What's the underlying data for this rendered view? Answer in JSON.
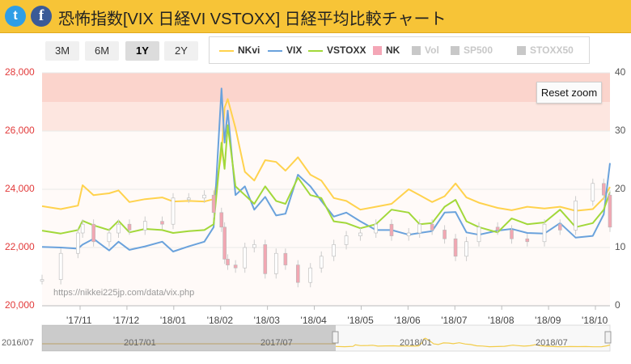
{
  "header": {
    "title": "恐怖指数[VIX 日経VI VSTOXX] 日経平均比較チャート",
    "twitter_glyph": "t",
    "facebook_glyph": "f"
  },
  "range_buttons": [
    {
      "label": "3M",
      "active": false
    },
    {
      "label": "6M",
      "active": false
    },
    {
      "label": "1Y",
      "active": true
    },
    {
      "label": "2Y",
      "active": false
    }
  ],
  "legend": [
    {
      "label": "NKvi",
      "kind": "line",
      "color": "#ffd24d",
      "enabled": true
    },
    {
      "label": "VIX",
      "kind": "line",
      "color": "#6aa2dc",
      "enabled": true
    },
    {
      "label": "VSTOXX",
      "kind": "line",
      "color": "#a2d83a",
      "enabled": true
    },
    {
      "label": "NK",
      "kind": "square",
      "color": "#f4a6b6",
      "enabled": true
    },
    {
      "label": "Vol",
      "kind": "square",
      "color": "#c8c8c8",
      "enabled": false
    },
    {
      "label": "SP500",
      "kind": "square",
      "color": "#c8c8c8",
      "enabled": false
    },
    {
      "label": "STOXX50",
      "kind": "square",
      "color": "#c8c8c8",
      "enabled": false
    }
  ],
  "reset_zoom_label": "Reset zoom",
  "watermark": "https://nikkei225jp.com/data/vix.php",
  "chart_data": {
    "type": "line",
    "left_axis": {
      "min": 20000,
      "max": 28000,
      "ticks": [
        "20,000",
        "22,000",
        "24,000",
        "26,000",
        "28,000"
      ]
    },
    "right_axis": {
      "min": 0,
      "max": 40,
      "ticks": [
        "0",
        "10",
        "20",
        "30",
        "40"
      ]
    },
    "x_ticks": [
      "'17/11",
      "'17/12",
      "'18/01",
      "'18/02",
      "'18/03",
      "'18/04",
      "'18/05",
      "'18/06",
      "'18/07",
      "'18/08",
      "'18/09",
      "'18/10"
    ],
    "x_range": [
      "2017-10-13",
      "2018-10-12"
    ],
    "highlight_bands": [
      {
        "from": 26000,
        "to": 28000,
        "color": "#fde6e0"
      },
      {
        "from": 27000,
        "to": 28000,
        "color": "#fbd4cc"
      }
    ],
    "series": [
      {
        "name": "NKvi",
        "axis": "right",
        "color": "#ffd24d",
        "values": [
          [
            "2017-10-13",
            17.1
          ],
          [
            "2017-10-25",
            16.6
          ],
          [
            "2017-11-05",
            17.2
          ],
          [
            "2017-11-08",
            20.7
          ],
          [
            "2017-11-15",
            19.0
          ],
          [
            "2017-11-25",
            19.3
          ],
          [
            "2017-12-01",
            19.8
          ],
          [
            "2017-12-08",
            17.8
          ],
          [
            "2017-12-18",
            18.3
          ],
          [
            "2017-12-29",
            18.6
          ],
          [
            "2018-01-05",
            17.9
          ],
          [
            "2018-01-15",
            18.0
          ],
          [
            "2018-01-25",
            17.9
          ],
          [
            "2018-01-31",
            18.3
          ],
          [
            "2018-02-05",
            26.0
          ],
          [
            "2018-02-07",
            34.0
          ],
          [
            "2018-02-09",
            35.5
          ],
          [
            "2018-02-14",
            30.5
          ],
          [
            "2018-02-20",
            23.0
          ],
          [
            "2018-02-26",
            21.5
          ],
          [
            "2018-03-05",
            25.0
          ],
          [
            "2018-03-12",
            24.7
          ],
          [
            "2018-03-18",
            23.2
          ],
          [
            "2018-03-26",
            25.5
          ],
          [
            "2018-04-03",
            22.5
          ],
          [
            "2018-04-10",
            21.5
          ],
          [
            "2018-04-18",
            18.5
          ],
          [
            "2018-04-26",
            18.0
          ],
          [
            "2018-05-05",
            16.5
          ],
          [
            "2018-05-15",
            17.0
          ],
          [
            "2018-05-25",
            17.5
          ],
          [
            "2018-06-05",
            20.0
          ],
          [
            "2018-06-12",
            19.0
          ],
          [
            "2018-06-20",
            17.8
          ],
          [
            "2018-06-28",
            18.8
          ],
          [
            "2018-07-05",
            21.0
          ],
          [
            "2018-07-12",
            18.6
          ],
          [
            "2018-07-20",
            17.7
          ],
          [
            "2018-08-01",
            16.8
          ],
          [
            "2018-08-10",
            16.4
          ],
          [
            "2018-08-20",
            17.0
          ],
          [
            "2018-08-31",
            16.7
          ],
          [
            "2018-09-10",
            17.0
          ],
          [
            "2018-09-20",
            16.3
          ],
          [
            "2018-10-01",
            16.6
          ],
          [
            "2018-10-08",
            18.5
          ],
          [
            "2018-10-12",
            20.4
          ]
        ]
      },
      {
        "name": "VIX",
        "axis": "right",
        "color": "#6aa2dc",
        "values": [
          [
            "2017-10-13",
            10.1
          ],
          [
            "2017-10-25",
            10.0
          ],
          [
            "2017-11-05",
            9.8
          ],
          [
            "2017-11-08",
            10.5
          ],
          [
            "2017-11-15",
            11.5
          ],
          [
            "2017-11-25",
            9.5
          ],
          [
            "2017-12-01",
            11.0
          ],
          [
            "2017-12-08",
            9.6
          ],
          [
            "2017-12-18",
            10.2
          ],
          [
            "2017-12-29",
            11.0
          ],
          [
            "2018-01-05",
            9.3
          ],
          [
            "2018-01-15",
            10.2
          ],
          [
            "2018-01-25",
            11.0
          ],
          [
            "2018-01-31",
            13.5
          ],
          [
            "2018-02-05",
            37.3
          ],
          [
            "2018-02-07",
            28.0
          ],
          [
            "2018-02-09",
            33.5
          ],
          [
            "2018-02-14",
            19.0
          ],
          [
            "2018-02-20",
            20.5
          ],
          [
            "2018-02-26",
            16.5
          ],
          [
            "2018-03-05",
            18.7
          ],
          [
            "2018-03-12",
            15.5
          ],
          [
            "2018-03-18",
            15.8
          ],
          [
            "2018-03-26",
            22.5
          ],
          [
            "2018-04-03",
            20.5
          ],
          [
            "2018-04-10",
            18.0
          ],
          [
            "2018-04-18",
            15.3
          ],
          [
            "2018-04-26",
            16.0
          ],
          [
            "2018-05-05",
            14.5
          ],
          [
            "2018-05-15",
            13.0
          ],
          [
            "2018-05-25",
            13.0
          ],
          [
            "2018-06-05",
            12.2
          ],
          [
            "2018-06-12",
            12.5
          ],
          [
            "2018-06-20",
            12.8
          ],
          [
            "2018-06-28",
            16.0
          ],
          [
            "2018-07-05",
            16.1
          ],
          [
            "2018-07-12",
            12.6
          ],
          [
            "2018-07-20",
            12.2
          ],
          [
            "2018-08-01",
            12.9
          ],
          [
            "2018-08-10",
            13.2
          ],
          [
            "2018-08-20",
            12.5
          ],
          [
            "2018-08-31",
            12.4
          ],
          [
            "2018-09-10",
            14.2
          ],
          [
            "2018-09-20",
            11.7
          ],
          [
            "2018-10-01",
            12.0
          ],
          [
            "2018-10-08",
            15.7
          ],
          [
            "2018-10-12",
            24.5
          ]
        ]
      },
      {
        "name": "VSTOXX",
        "axis": "right",
        "color": "#a2d83a",
        "values": [
          [
            "2017-10-13",
            12.9
          ],
          [
            "2017-10-25",
            12.4
          ],
          [
            "2017-11-05",
            13.0
          ],
          [
            "2017-11-08",
            14.6
          ],
          [
            "2017-11-15",
            13.8
          ],
          [
            "2017-11-25",
            13.0
          ],
          [
            "2017-12-01",
            14.6
          ],
          [
            "2017-12-08",
            12.6
          ],
          [
            "2017-12-18",
            13.2
          ],
          [
            "2017-12-29",
            13.0
          ],
          [
            "2018-01-05",
            12.5
          ],
          [
            "2018-01-15",
            12.8
          ],
          [
            "2018-01-25",
            13.0
          ],
          [
            "2018-01-31",
            14.0
          ],
          [
            "2018-02-05",
            28.0
          ],
          [
            "2018-02-07",
            23.5
          ],
          [
            "2018-02-09",
            31.0
          ],
          [
            "2018-02-14",
            20.5
          ],
          [
            "2018-02-20",
            19.0
          ],
          [
            "2018-02-26",
            17.5
          ],
          [
            "2018-03-05",
            20.5
          ],
          [
            "2018-03-12",
            18.0
          ],
          [
            "2018-03-18",
            17.5
          ],
          [
            "2018-03-26",
            22.0
          ],
          [
            "2018-04-03",
            19.0
          ],
          [
            "2018-04-10",
            18.5
          ],
          [
            "2018-04-18",
            14.5
          ],
          [
            "2018-04-26",
            14.2
          ],
          [
            "2018-05-05",
            13.3
          ],
          [
            "2018-05-15",
            14.0
          ],
          [
            "2018-05-25",
            16.5
          ],
          [
            "2018-06-05",
            16.0
          ],
          [
            "2018-06-12",
            14.0
          ],
          [
            "2018-06-20",
            14.2
          ],
          [
            "2018-06-28",
            17.0
          ],
          [
            "2018-07-05",
            18.2
          ],
          [
            "2018-07-12",
            14.5
          ],
          [
            "2018-07-20",
            13.5
          ],
          [
            "2018-08-01",
            12.6
          ],
          [
            "2018-08-10",
            15.0
          ],
          [
            "2018-08-20",
            14.0
          ],
          [
            "2018-08-31",
            14.3
          ],
          [
            "2018-09-10",
            16.5
          ],
          [
            "2018-09-20",
            13.5
          ],
          [
            "2018-10-01",
            14.2
          ],
          [
            "2018-10-08",
            16.5
          ],
          [
            "2018-10-12",
            19.5
          ]
        ]
      },
      {
        "name": "NK",
        "axis": "left",
        "color": "#f2a7b2",
        "values": [
          [
            "2017-10-13",
            20900
          ],
          [
            "2017-10-25",
            21800
          ],
          [
            "2017-11-05",
            22500
          ],
          [
            "2017-11-08",
            22800
          ],
          [
            "2017-11-15",
            22200
          ],
          [
            "2017-11-25",
            22500
          ],
          [
            "2017-12-01",
            22800
          ],
          [
            "2017-12-08",
            22600
          ],
          [
            "2017-12-18",
            22900
          ],
          [
            "2017-12-29",
            22800
          ],
          [
            "2018-01-05",
            23700
          ],
          [
            "2018-01-15",
            23700
          ],
          [
            "2018-01-25",
            23800
          ],
          [
            "2018-01-31",
            23200
          ],
          [
            "2018-02-05",
            22700
          ],
          [
            "2018-02-07",
            21600
          ],
          [
            "2018-02-09",
            21400
          ],
          [
            "2018-02-14",
            21300
          ],
          [
            "2018-02-20",
            22000
          ],
          [
            "2018-02-26",
            22100
          ],
          [
            "2018-03-05",
            21100
          ],
          [
            "2018-03-12",
            21800
          ],
          [
            "2018-03-18",
            21400
          ],
          [
            "2018-03-26",
            20800
          ],
          [
            "2018-04-03",
            21300
          ],
          [
            "2018-04-10",
            21700
          ],
          [
            "2018-04-18",
            22100
          ],
          [
            "2018-04-26",
            22400
          ],
          [
            "2018-05-05",
            22500
          ],
          [
            "2018-05-15",
            22800
          ],
          [
            "2018-05-25",
            22400
          ],
          [
            "2018-06-05",
            22500
          ],
          [
            "2018-06-12",
            22800
          ],
          [
            "2018-06-20",
            22600
          ],
          [
            "2018-06-28",
            22300
          ],
          [
            "2018-07-05",
            21700
          ],
          [
            "2018-07-12",
            22200
          ],
          [
            "2018-07-20",
            22700
          ],
          [
            "2018-08-01",
            22600
          ],
          [
            "2018-08-10",
            22300
          ],
          [
            "2018-08-20",
            22200
          ],
          [
            "2018-08-31",
            22800
          ],
          [
            "2018-09-10",
            22600
          ],
          [
            "2018-09-20",
            23600
          ],
          [
            "2018-10-01",
            24200
          ],
          [
            "2018-10-08",
            23800
          ],
          [
            "2018-10-12",
            22700
          ]
        ]
      }
    ],
    "navigator": {
      "ticks": [
        "2016/07",
        "2017/01",
        "2017/07",
        "2018/01",
        "2018/07"
      ],
      "selected_range": [
        "2017-10-13",
        "2018-10-12"
      ]
    }
  }
}
